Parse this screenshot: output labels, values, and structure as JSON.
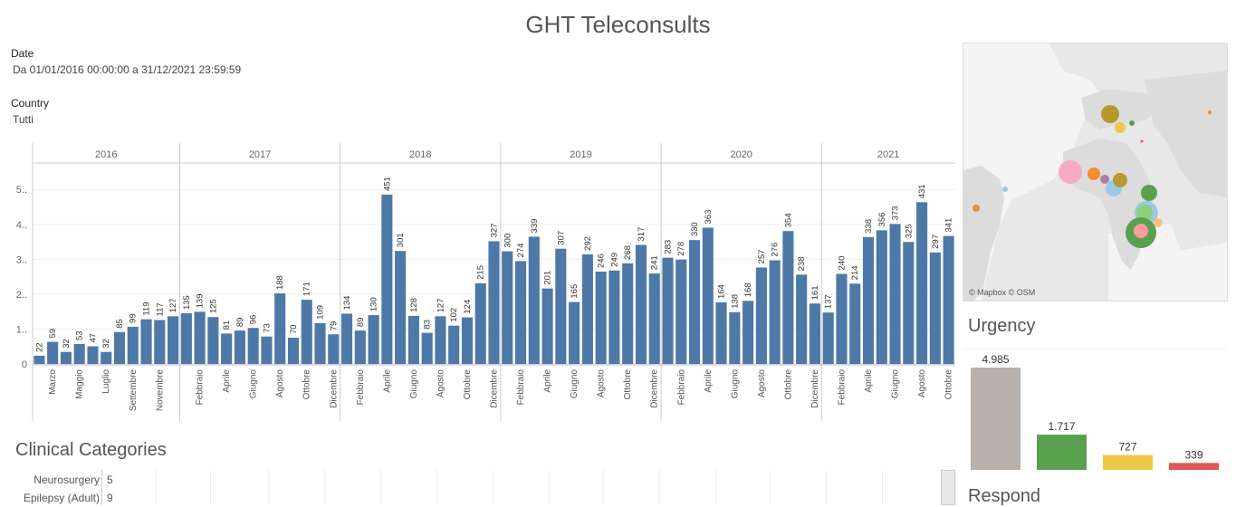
{
  "title": "GHT Teleconsults",
  "filters": {
    "date_label": "Date",
    "date_value": "Da 01/01/2016 00:00:00 a 31/12/2021 23:59:59",
    "country_label": "Country",
    "country_value": "Tutti"
  },
  "chart_data": [
    {
      "type": "bar",
      "years": [
        "2016",
        "2017",
        "2018",
        "2019",
        "2020",
        "2021"
      ],
      "year_bar_counts": [
        11,
        12,
        12,
        12,
        12,
        10
      ],
      "values": [
        22,
        59,
        32,
        53,
        47,
        32,
        85,
        99,
        119,
        117,
        127,
        135,
        139,
        125,
        81,
        89,
        96,
        73,
        188,
        70,
        171,
        109,
        79,
        134,
        89,
        130,
        451,
        301,
        128,
        83,
        127,
        102,
        124,
        215,
        327,
        300,
        274,
        339,
        201,
        307,
        165,
        292,
        246,
        249,
        268,
        317,
        241,
        283,
        278,
        330,
        363,
        164,
        138,
        168,
        257,
        276,
        354,
        238,
        161,
        137,
        240,
        214,
        338,
        356,
        373,
        325,
        431,
        297,
        341
      ],
      "month_labels": [
        "",
        "Marzo",
        "",
        "Maggio",
        "",
        "Luglio",
        "",
        "Settembre",
        "",
        "Novembre",
        "",
        "",
        "Febbraio",
        "",
        "Aprile",
        "",
        "Giugno",
        "",
        "Agosto",
        "",
        "Ottobre",
        "",
        "Dicembre",
        "",
        "Febbraio",
        "",
        "Aprile",
        "",
        "Giugno",
        "",
        "Agosto",
        "",
        "Ottobre",
        "",
        "Dicembre",
        "",
        "Febbraio",
        "",
        "Aprile",
        "",
        "Giugno",
        "",
        "Agosto",
        "",
        "Ottobre",
        "",
        "Dicembre",
        "",
        "Febbraio",
        "",
        "Aprile",
        "",
        "Giugno",
        "",
        "Agosto",
        "",
        "Ottobre",
        "",
        "Dicembre",
        "",
        "Febbraio",
        "",
        "Aprile",
        "",
        "Giugno",
        "",
        "Agosto",
        "",
        "Ottobre"
      ],
      "y_ticks": [
        "0",
        "1..",
        "2..",
        "3..",
        "4..",
        "5.."
      ],
      "ylim": [
        0,
        5
      ],
      "color": "#4e79a7"
    },
    {
      "type": "bar",
      "title": "Urgency",
      "values": [
        4985,
        1717,
        727,
        339
      ],
      "value_labels": [
        "4.985",
        "1.717",
        "727",
        "339"
      ],
      "colors": [
        "#bab0ac",
        "#59a14f",
        "#edc948",
        "#e15759"
      ]
    }
  ],
  "clinical": {
    "title": "Clinical Categories",
    "rows": [
      {
        "name": "Neurosurgery",
        "count": "5"
      },
      {
        "name": "Epilepsy (Adult)",
        "count": "9"
      }
    ]
  },
  "map": {
    "credit": "© Mapbox © OSM"
  },
  "urgency_title": "Urgency",
  "respond_title": "Respond"
}
